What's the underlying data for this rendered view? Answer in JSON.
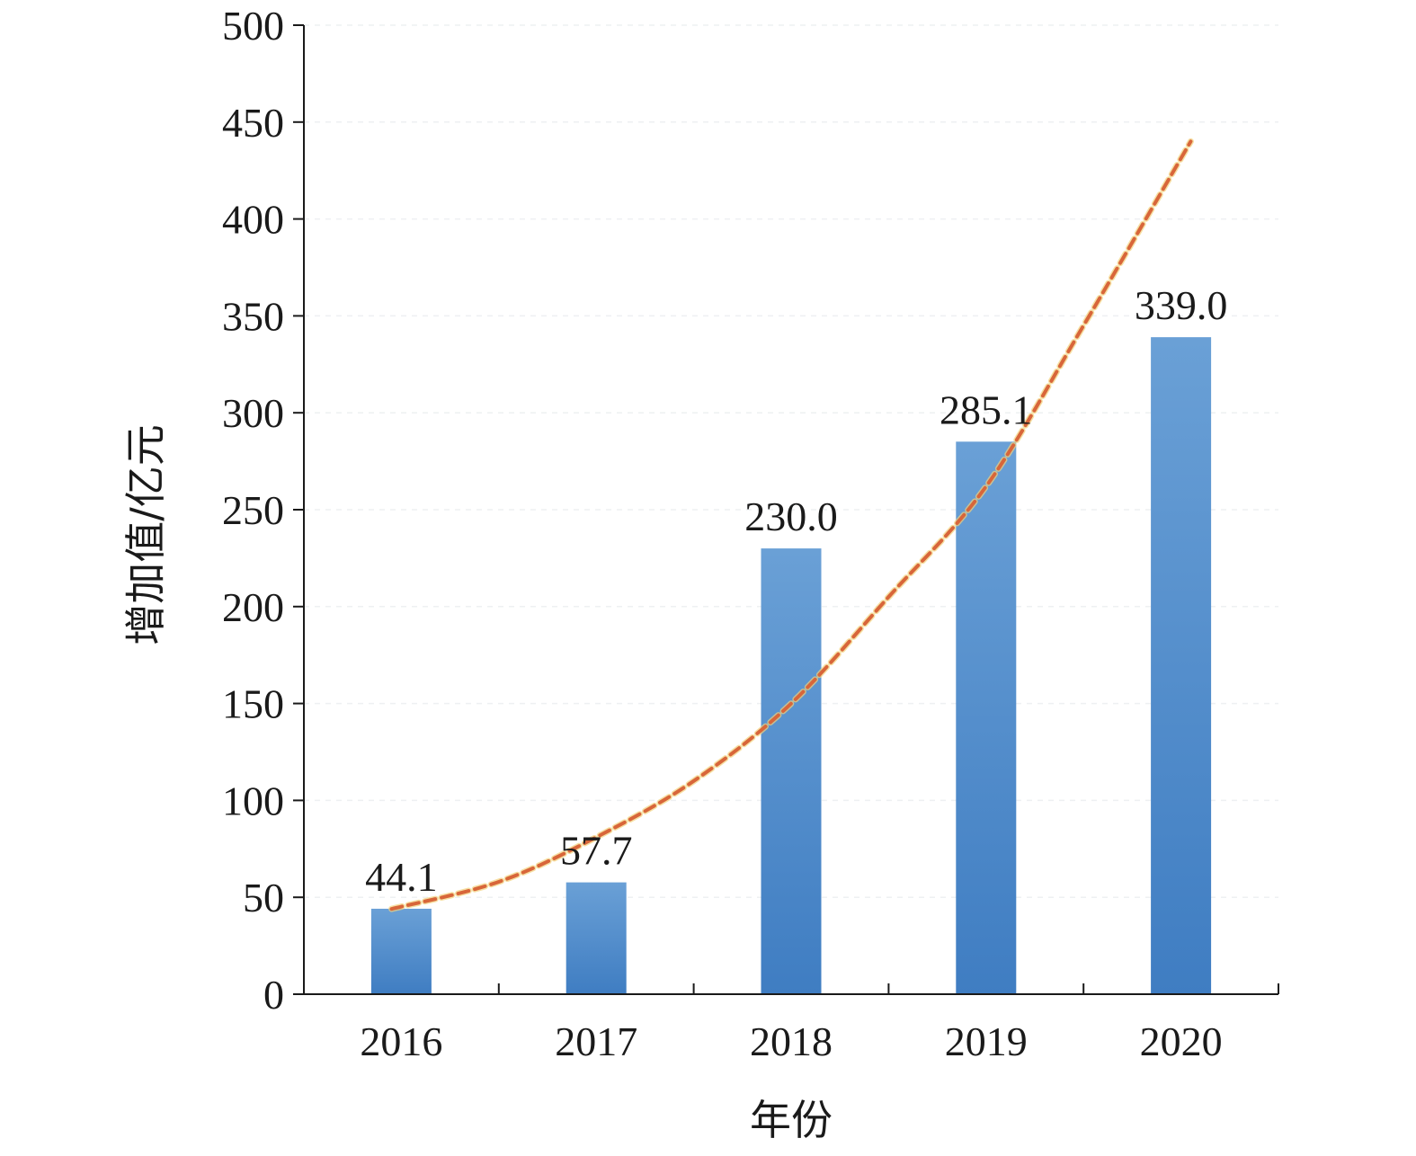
{
  "chart_data": {
    "type": "bar",
    "categories": [
      "2016",
      "2017",
      "2018",
      "2019",
      "2020"
    ],
    "values": [
      44.1,
      57.7,
      230.0,
      285.1,
      339.0
    ],
    "data_labels": [
      "44.1",
      "57.7",
      "230.0",
      "285.1",
      "339.0"
    ],
    "xlabel": "年份",
    "ylabel": "增加值/亿元",
    "ylim": [
      0,
      500
    ],
    "y_ticks": [
      0,
      50,
      100,
      150,
      200,
      250,
      300,
      350,
      400,
      450,
      500
    ],
    "grid": true,
    "legend": "none",
    "trendline": {
      "type": "exponential",
      "style": "dashed",
      "x": [
        2015.95,
        2016.5,
        2017,
        2017.5,
        2018,
        2018.5,
        2019,
        2019.5,
        2020.05
      ],
      "y": [
        44,
        58,
        81,
        110,
        150,
        205,
        262,
        345,
        440
      ]
    },
    "colors": {
      "bar_top": "#6aa0d6",
      "bar_bottom": "#3f7dc2",
      "trendline": "#d8663a",
      "trendline_halo": "#f2d27a"
    }
  }
}
